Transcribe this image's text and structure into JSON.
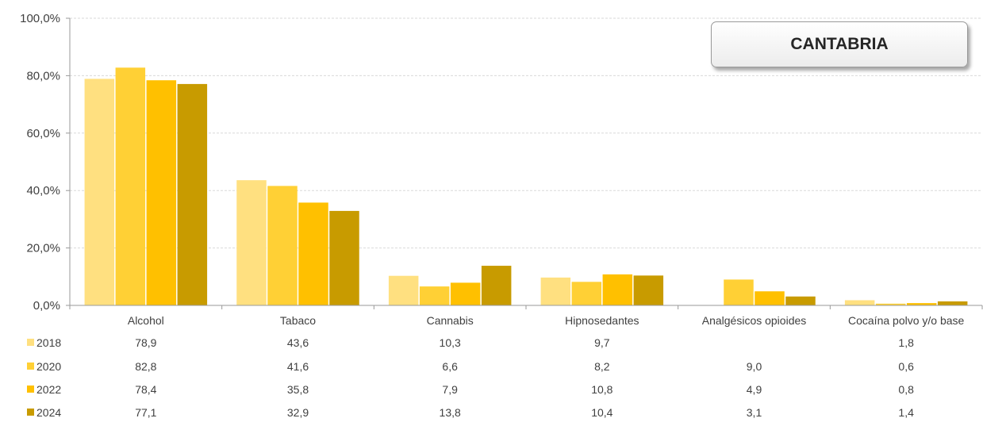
{
  "region_label": "CANTABRIA",
  "chart_data": {
    "type": "bar",
    "categories": [
      "Alcohol",
      "Tabaco",
      "Cannabis",
      "Hipnosedantes",
      "Analgésicos opioides",
      "Cocaína polvo y/o base"
    ],
    "series": [
      {
        "name": "2018",
        "color": "#FFE080",
        "values": [
          78.9,
          43.6,
          10.3,
          9.7,
          null,
          1.8
        ],
        "labels": [
          "78,9",
          "43,6",
          "10,3",
          "9,7",
          "",
          "1,8"
        ]
      },
      {
        "name": "2020",
        "color": "#FFD035",
        "values": [
          82.8,
          41.6,
          6.6,
          8.2,
          9.0,
          0.6
        ],
        "labels": [
          "82,8",
          "41,6",
          "6,6",
          "8,2",
          "9,0",
          "0,6"
        ]
      },
      {
        "name": "2022",
        "color": "#FFC000",
        "values": [
          78.4,
          35.8,
          7.9,
          10.8,
          4.9,
          0.8
        ],
        "labels": [
          "78,4",
          "35,8",
          "7,9",
          "10,8",
          "4,9",
          "0,8"
        ]
      },
      {
        "name": "2024",
        "color": "#C89B00",
        "values": [
          77.1,
          32.9,
          13.8,
          10.4,
          3.1,
          1.4
        ],
        "labels": [
          "77,1",
          "32,9",
          "13,8",
          "10,4",
          "3,1",
          "1,4"
        ]
      }
    ],
    "ylim": [
      0,
      100
    ],
    "yticks": [
      0,
      20,
      40,
      60,
      80,
      100
    ],
    "ytick_labels": [
      "0,0%",
      "20,0%",
      "40,0%",
      "60,0%",
      "80,0%",
      "100,0%"
    ],
    "grid": true,
    "legend_placement": "data-table-left"
  }
}
